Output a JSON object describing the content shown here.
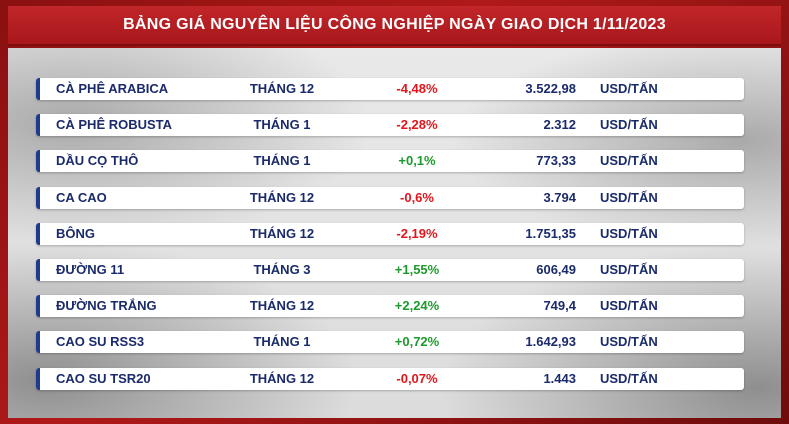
{
  "header": {
    "title": "BẢNG GIÁ NGUYÊN LIỆU CÔNG NGHIỆP NGÀY GIAO DỊCH 1/11/2023"
  },
  "colors": {
    "negative": "#e0161c",
    "positive": "#1c9b2c",
    "text": "#1a2a6b",
    "header_bg": "#b01d21"
  },
  "rows": [
    {
      "name": "CÀ PHÊ ARABICA",
      "month": "THÁNG 12",
      "change": "-4,48%",
      "direction": "neg",
      "price": "3.522,98",
      "unit": "USD/TẤN"
    },
    {
      "name": "CÀ PHÊ ROBUSTA",
      "month": "THÁNG 1",
      "change": "-2,28%",
      "direction": "neg",
      "price": "2.312",
      "unit": "USD/TẤN"
    },
    {
      "name": "DẦU CỌ THÔ",
      "month": "THÁNG 1",
      "change": "+0,1%",
      "direction": "pos",
      "price": "773,33",
      "unit": "USD/TẤN"
    },
    {
      "name": "CA CAO",
      "month": "THÁNG 12",
      "change": "-0,6%",
      "direction": "neg",
      "price": "3.794",
      "unit": "USD/TẤN"
    },
    {
      "name": "BÔNG",
      "month": "THÁNG 12",
      "change": "-2,19%",
      "direction": "neg",
      "price": "1.751,35",
      "unit": "USD/TẤN"
    },
    {
      "name": "ĐƯỜNG 11",
      "month": "THÁNG 3",
      "change": "+1,55%",
      "direction": "pos",
      "price": "606,49",
      "unit": "USD/TẤN"
    },
    {
      "name": "ĐƯỜNG TRẮNG",
      "month": "THÁNG 12",
      "change": "+2,24%",
      "direction": "pos",
      "price": "749,4",
      "unit": "USD/TẤN"
    },
    {
      "name": "CAO SU RSS3",
      "month": "THÁNG 1",
      "change": "+0,72%",
      "direction": "pos",
      "price": "1.642,93",
      "unit": "USD/TẤN"
    },
    {
      "name": "CAO SU TSR20",
      "month": "THÁNG 12",
      "change": "-0,07%",
      "direction": "neg",
      "price": "1.443",
      "unit": "USD/TẤN"
    }
  ]
}
